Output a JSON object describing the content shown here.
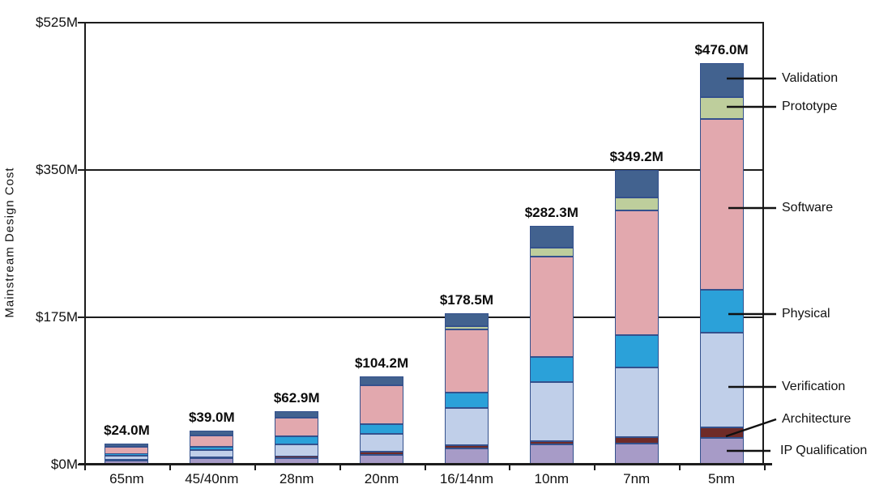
{
  "chart_data": {
    "type": "bar",
    "stacked": true,
    "title": "",
    "xlabel": "",
    "ylabel": "Mainstream Design Cost",
    "ylim": [
      0,
      525
    ],
    "grid": "horizontal",
    "legend_position": "right-callouts",
    "y_ticks": [
      {
        "label": "$525M",
        "value": 525
      },
      {
        "label": "$350M",
        "value": 350
      },
      {
        "label": "$175M",
        "value": 175
      },
      {
        "label": "$0M",
        "value": 0
      }
    ],
    "categories": [
      "65nm",
      "45/40nm",
      "28nm",
      "20nm",
      "16/14nm",
      "10nm",
      "7nm",
      "5nm"
    ],
    "totals": [
      24.0,
      39.0,
      62.9,
      104.2,
      178.5,
      282.3,
      349.2,
      476.0
    ],
    "total_labels": [
      "$24.0M",
      "$39.0M",
      "$62.9M",
      "$104.2M",
      "$178.5M",
      "$282.3M",
      "$349.2M",
      "$476.0M"
    ],
    "series": [
      {
        "name": "IP Qualification",
        "color": "#a79bc7",
        "values": [
          3.5,
          6.5,
          6.4,
          11.0,
          17.9,
          23.0,
          23.6,
          31.0
        ]
      },
      {
        "name": "Architecture",
        "color": "#6f2b28",
        "values": [
          1.0,
          1.5,
          2.5,
          3.0,
          4.1,
          3.8,
          8.6,
          11.9
        ]
      },
      {
        "name": "Verification",
        "color": "#c0cfe9",
        "values": [
          5.0,
          8.0,
          14.5,
          22.0,
          44.7,
          70.4,
          82.2,
          112.8
        ]
      },
      {
        "name": "Physical",
        "color": "#2ba1d9",
        "values": [
          2.5,
          4.0,
          9.5,
          10.7,
          17.5,
          29.8,
          38.8,
          51.0
        ]
      },
      {
        "name": "Software",
        "color": "#e2a8ae",
        "values": [
          8.5,
          14.0,
          22.0,
          46.5,
          75.2,
          119.1,
          148.2,
          202.9
        ]
      },
      {
        "name": "Prototype",
        "color": "#bece9c",
        "values": [
          0,
          0,
          0,
          0,
          3.8,
          10.3,
          15.3,
          25.7
        ]
      },
      {
        "name": "Validation",
        "color": "#42628f",
        "values": [
          3.5,
          5.0,
          8.0,
          11.0,
          15.3,
          25.9,
          32.5,
          40.7
        ]
      }
    ],
    "segment_border_color": "#34518d",
    "axis_color": "#1c1c1c"
  },
  "legend": {
    "items": [
      {
        "label": "Validation"
      },
      {
        "label": "Prototype"
      },
      {
        "label": "Software"
      },
      {
        "label": "Physical"
      },
      {
        "label": "Verification"
      },
      {
        "label": "Architecture"
      },
      {
        "label": "IP Qualification"
      }
    ]
  }
}
